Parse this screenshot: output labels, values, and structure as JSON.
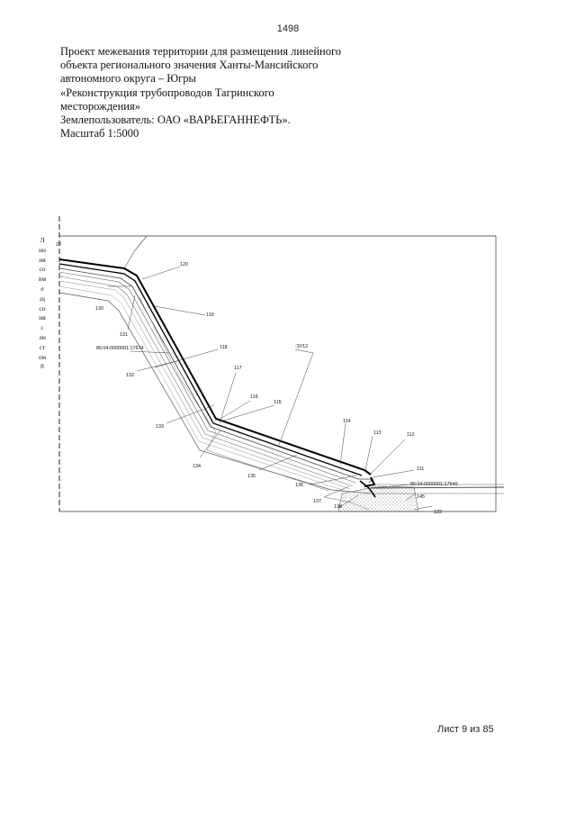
{
  "page_number": "1498",
  "header": {
    "line1": "Проект межевания территории для размещения линейного",
    "line2": "объекта регионального значения Ханты-Мансийского",
    "line3": "автономного округа – Югры",
    "line4": "«Реконструкция трубопроводов Тагринского",
    "line5": "месторождения»",
    "owner_prefix": "Землепользователь:",
    "owner_name": " ОАО «ВАРЬЕГАННЕФТЬ».",
    "scale": "Масштаб 1:5000"
  },
  "side_text": [
    "Л",
    "ин",
    "ия",
    "со",
    "вм",
    "е",
    "щ",
    "сн",
    "ия",
    "с",
    "ли",
    "ст",
    "ом",
    "8"
  ],
  "map_labels": {
    "l22": "22",
    "l120": "120",
    "l130a": "130",
    "l119": "119",
    "l131": "131",
    "cadastral1": "86:04:0000001:17674",
    "l118": "118",
    "zu12": ":ЗУ12",
    "l132": "132",
    "l117": "117",
    "l116": "116",
    "l115": "115",
    "l133": "133",
    "l114": "114",
    "l113": "113",
    "l112": "112",
    "l134": "134",
    "l111": "111",
    "l135": "135",
    "l136": "136",
    "cadastral2": "86:04:0000001:17540",
    "l137": "137",
    "l145": "145",
    "l138": "138",
    "l122": "122"
  },
  "footer": {
    "sheet": "Лист 9 из 85"
  }
}
